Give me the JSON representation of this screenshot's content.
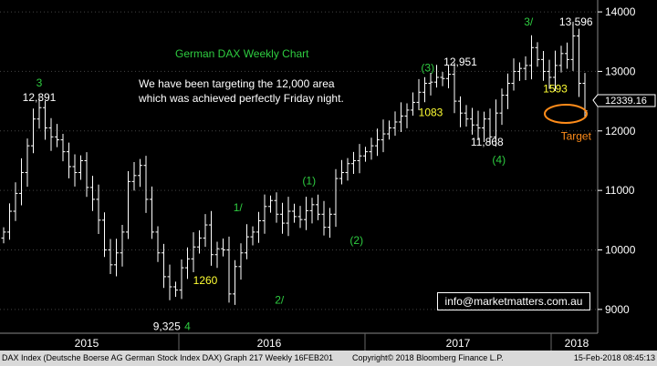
{
  "chart_data": {
    "type": "bar",
    "style": "ohlc",
    "title": "German DAX Weekly Chart",
    "subtitle_lines": [
      "We have been targeting the 12,000 area",
      "which was achieved perfectly Friday night."
    ],
    "x_ticks": [
      "2015",
      "2016",
      "2017",
      "2018"
    ],
    "y_ticks": [
      9000,
      10000,
      11000,
      12000,
      13000,
      14000
    ],
    "ylim": [
      8600,
      14200
    ],
    "last_price": "12339.16",
    "colors": {
      "background": "#000000",
      "bars": "#ffffff",
      "title": "#2ecc40",
      "wave": "#2ecc40",
      "yellow": "#ffff33",
      "target": "#ff8c1a"
    },
    "closes": [
      10300,
      10650,
      10950,
      11300,
      11750,
      12200,
      12391,
      12050,
      11900,
      11850,
      11650,
      11400,
      11300,
      11500,
      11050,
      10850,
      10500,
      10000,
      9750,
      9950,
      10300,
      11150,
      11250,
      11420,
      10850,
      10300,
      9950,
      9550,
      9380,
      9325,
      9700,
      9850,
      10050,
      10200,
      10420,
      9920,
      10020,
      10000,
      9260,
      9720,
      9950,
      10220,
      10300,
      10490,
      10730,
      10830,
      10600,
      10450,
      10650,
      10560,
      10510,
      10660,
      10760,
      10600,
      10380,
      10600,
      11200,
      11300,
      11450,
      11500,
      11580,
      11650,
      11750,
      11850,
      11950,
      12050,
      12150,
      12250,
      12350,
      12480,
      12650,
      12800,
      12820,
      12900,
      12880,
      12951,
      12500,
      12300,
      12200,
      12100,
      12050,
      12200,
      11900,
      12300,
      12600,
      12800,
      13000,
      13050,
      13100,
      13400,
      13200,
      13000,
      12900,
      13100,
      13300,
      13200,
      13596,
      12800,
      12339
    ],
    "annotations": [
      {
        "text": "3",
        "color": "wave",
        "x": 6,
        "y": 12750
      },
      {
        "text": "12,391",
        "color": "white",
        "x": 6,
        "y": 12500
      },
      {
        "text": "9,325",
        "color": "white",
        "x": 27.5,
        "y": 8650
      },
      {
        "text": "4",
        "color": "wave",
        "x": 31,
        "y": 8650
      },
      {
        "text": "1260",
        "color": "yellow",
        "x": 34,
        "y": 9430
      },
      {
        "text": "1/",
        "color": "wave",
        "x": 39.5,
        "y": 10650
      },
      {
        "text": "2/",
        "color": "wave",
        "x": 46.5,
        "y": 9100
      },
      {
        "text": "(1)",
        "color": "wave",
        "x": 51.5,
        "y": 11100
      },
      {
        "text": "(2)",
        "color": "wave",
        "x": 59.5,
        "y": 10100
      },
      {
        "text": "(3)",
        "color": "wave",
        "x": 71.5,
        "y": 13000
      },
      {
        "text": "12,951",
        "color": "white",
        "x": 77,
        "y": 13100
      },
      {
        "text": "1083",
        "color": "yellow",
        "x": 72,
        "y": 12250
      },
      {
        "text": "11,868",
        "color": "white",
        "x": 81.5,
        "y": 11750
      },
      {
        "text": "(4)",
        "color": "wave",
        "x": 83.5,
        "y": 11450
      },
      {
        "text": "3/",
        "color": "wave",
        "x": 88.5,
        "y": 13770
      },
      {
        "text": "13,596",
        "color": "white",
        "x": 96.5,
        "y": 13770
      },
      {
        "text": "1593",
        "color": "yellow",
        "x": 93,
        "y": 12650
      },
      {
        "text": "Target",
        "color": "target",
        "x": 96.5,
        "y": 11850
      }
    ]
  },
  "footer": {
    "left": "DAX Index (Deutsche Boerse AG German Stock Index DAX) Graph 217  Weekly 16FEB201",
    "middle": "Copyright© 2018 Bloomberg Finance L.P.",
    "right": "15-Feb-2018 08:45:13"
  },
  "email": "info@marketmatters.com.au"
}
